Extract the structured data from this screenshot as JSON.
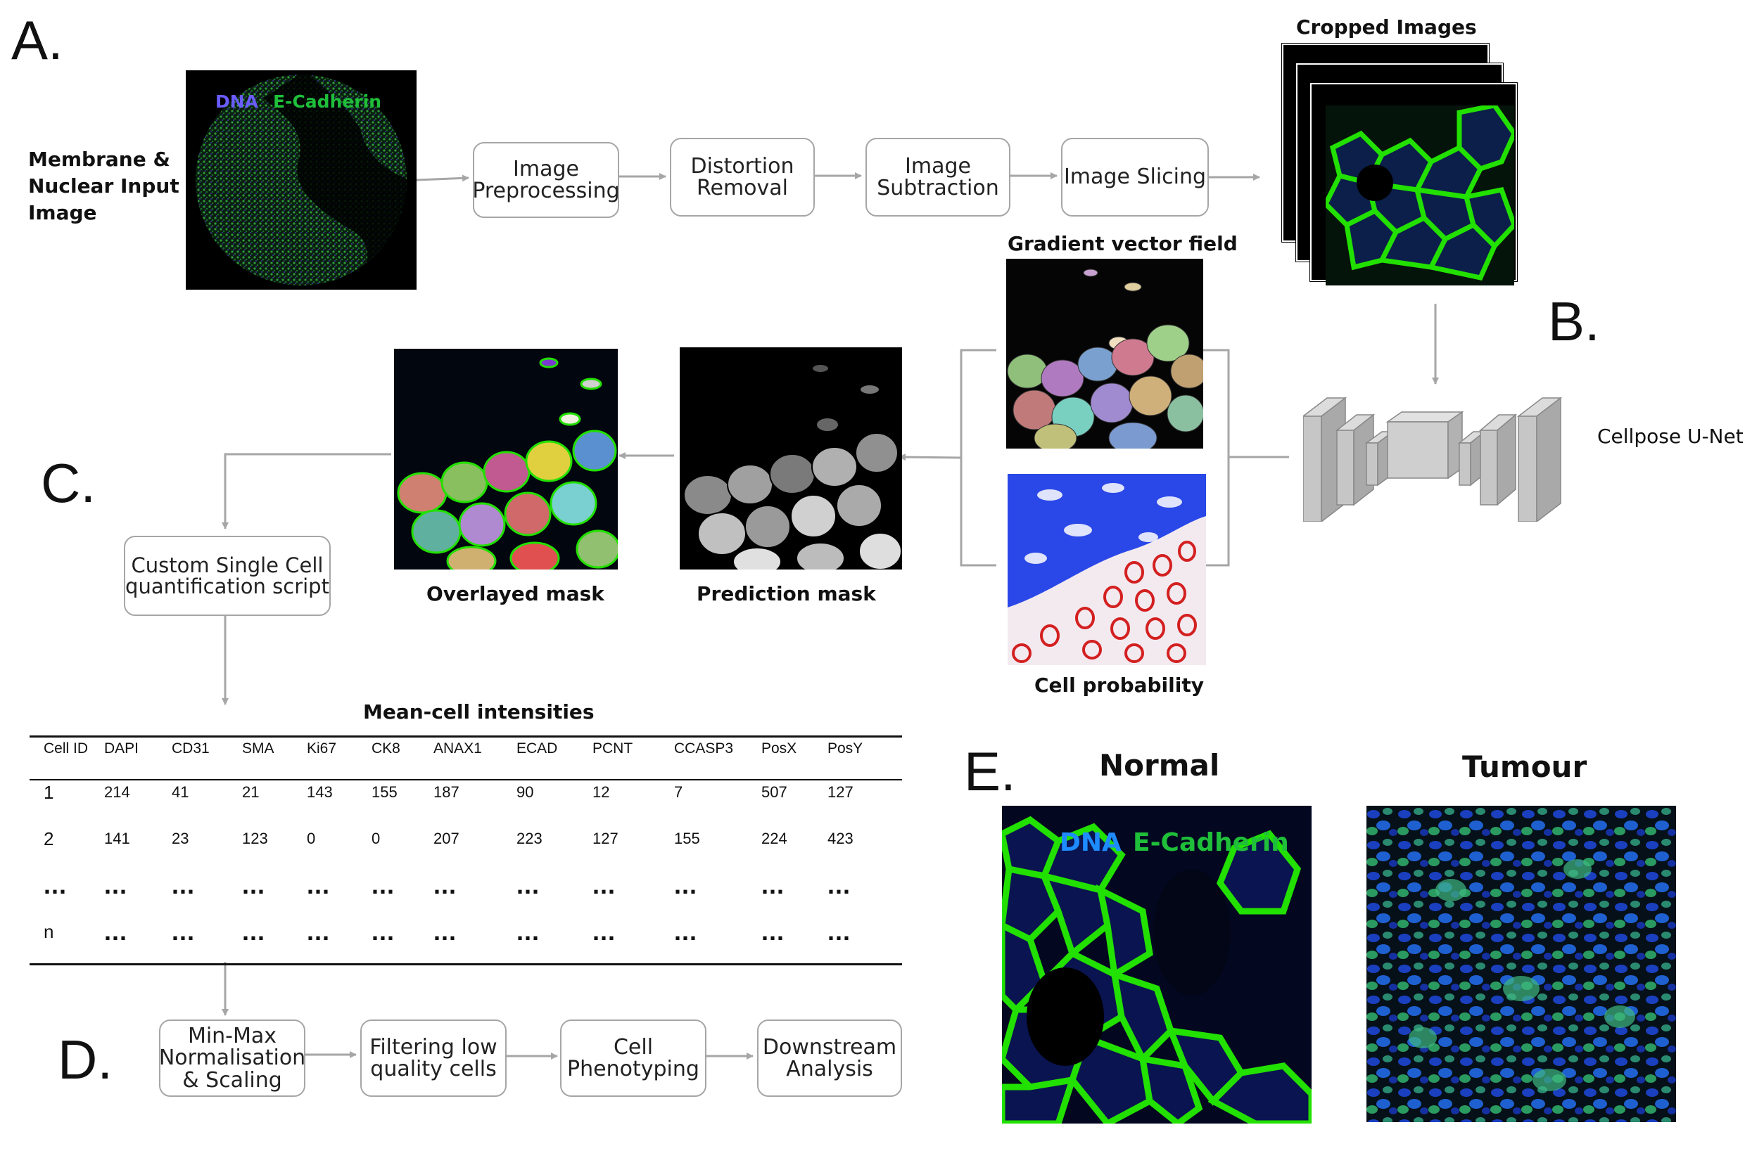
{
  "panels": {
    "a": "A.",
    "b": "B.",
    "c": "C.",
    "d": "D.",
    "e": "E."
  },
  "input": {
    "label": "Membrane &\nNuclear Input\nImage",
    "dna": "DNA",
    "ecad": "E-Cadherin"
  },
  "pipeline_a": [
    "Image\nPreprocessing",
    "Distortion\nRemoval",
    "Image\nSubtraction",
    "Image Slicing"
  ],
  "cropped_title": "Cropped Images",
  "cellpose_label": "Cellpose U-Net",
  "gradient_title": "Gradient vector field",
  "cellprob_title": "Cell probability",
  "prediction_title": "Prediction mask",
  "overlay_title": "Overlayed mask",
  "quant_box": "Custom Single Cell\nquantification script",
  "table": {
    "title": "Mean-cell intensities",
    "headers": [
      "Cell ID",
      "DAPI",
      "CD31",
      "SMA",
      "Ki67",
      "CK8",
      "ANAX1",
      "ECAD",
      "PCNT",
      "CCASP3",
      "PosX",
      "PosY"
    ],
    "rows": [
      [
        "1",
        "214",
        "41",
        "21",
        "143",
        "155",
        "187",
        "90",
        "12",
        "7",
        "507",
        "127"
      ],
      [
        "2",
        "141",
        "23",
        "123",
        "0",
        "0",
        "207",
        "223",
        "127",
        "155",
        "224",
        "423"
      ],
      [
        "...",
        "...",
        "...",
        "...",
        "...",
        "...",
        "...",
        "...",
        "...",
        "...",
        "...",
        "..."
      ],
      [
        "n",
        "...",
        "...",
        "...",
        "...",
        "...",
        "...",
        "...",
        "...",
        "...",
        "...",
        "..."
      ]
    ]
  },
  "pipeline_d": [
    "Min-Max\nNormalisation\n& Scaling",
    "Filtering low\nquality cells",
    "Cell\nPhenotyping",
    "Downstream\nAnalysis"
  ],
  "panel_e": {
    "normal": "Normal",
    "tumour": "Tumour",
    "dna": "DNA",
    "ecad": "E-Cadherin"
  },
  "colors": {
    "arrow": "#a6a6a6",
    "box_border": "#a6a6a6",
    "dna_blue": "#6a5cff",
    "dna_cyan": "#1e8cff",
    "ecad_green": "#1fbf3a",
    "membrane_green": "#22e000"
  }
}
